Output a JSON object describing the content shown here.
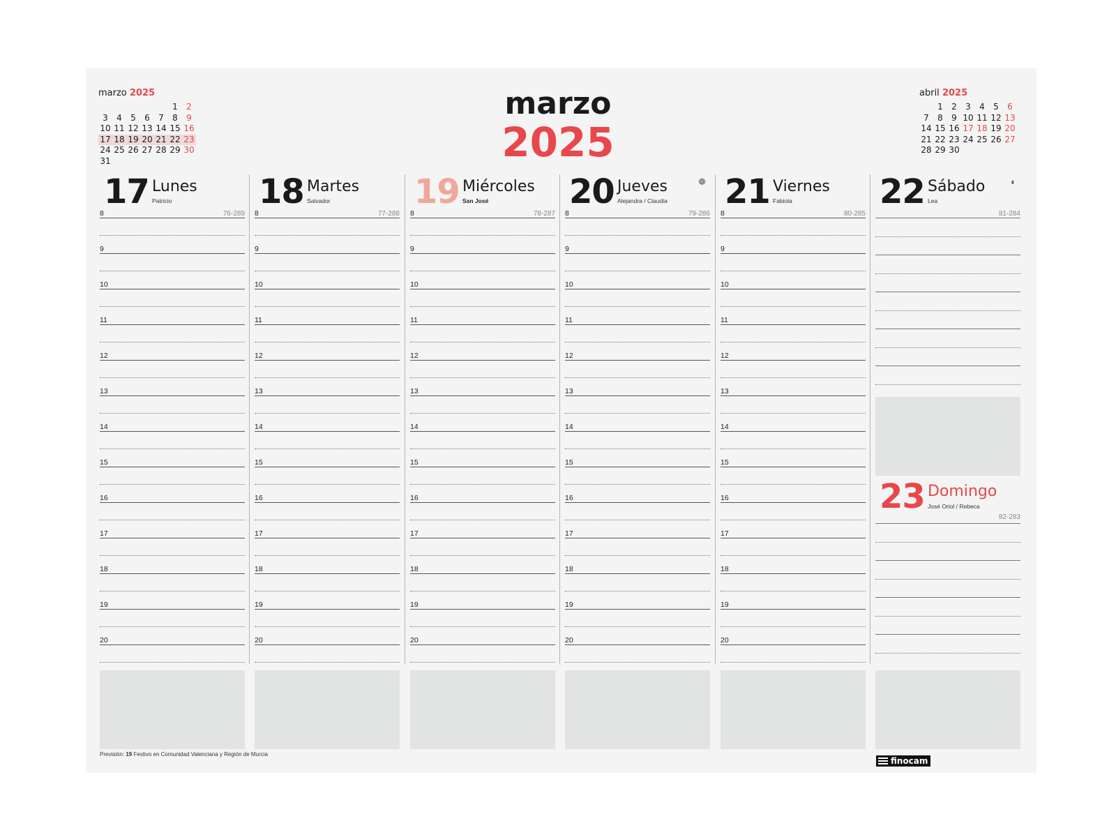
{
  "title": {
    "month": "marzo",
    "year": "2025"
  },
  "mini_left": {
    "month": "marzo",
    "year": "2025",
    "start_col": 5,
    "days": [
      "1",
      "2",
      "3",
      "4",
      "5",
      "6",
      "7",
      "8",
      "9",
      "10",
      "11",
      "12",
      "13",
      "14",
      "15",
      "16",
      "17",
      "18",
      "19",
      "20",
      "21",
      "22",
      "23",
      "24",
      "25",
      "26",
      "27",
      "28",
      "29",
      "30",
      "31"
    ],
    "red": [
      "2",
      "9",
      "16",
      "23",
      "30"
    ],
    "highlight": [
      "17",
      "18",
      "19",
      "20",
      "21",
      "22",
      "23"
    ]
  },
  "mini_right": {
    "month": "abril",
    "year": "2025",
    "start_col": 1,
    "days": [
      "1",
      "2",
      "3",
      "4",
      "5",
      "6",
      "7",
      "8",
      "9",
      "10",
      "11",
      "12",
      "13",
      "14",
      "15",
      "16",
      "17",
      "18",
      "19",
      "20",
      "21",
      "22",
      "23",
      "24",
      "25",
      "26",
      "27",
      "28",
      "29",
      "30"
    ],
    "red": [
      "6",
      "13",
      "17",
      "18",
      "20",
      "27"
    ],
    "highlight": []
  },
  "hours": [
    "8",
    "9",
    "10",
    "11",
    "12",
    "13",
    "14",
    "15",
    "16",
    "17",
    "18",
    "19",
    "20"
  ],
  "days": [
    {
      "num": "17",
      "name": "Lunes",
      "saint": "Patricio",
      "code": "76-289",
      "num_color": "#1a1a1a",
      "saint_bold": false,
      "icon": ""
    },
    {
      "num": "18",
      "name": "Martes",
      "saint": "Salvador",
      "code": "77-288",
      "num_color": "#1a1a1a",
      "saint_bold": false,
      "icon": ""
    },
    {
      "num": "19",
      "name": "Miércoles",
      "saint": "San José",
      "code": "78-287",
      "num_color": "#f0a79b",
      "saint_bold": true,
      "icon": ""
    },
    {
      "num": "20",
      "name": "Jueves",
      "saint": "Alejandra / Claudia",
      "code": "79-286",
      "num_color": "#1a1a1a",
      "saint_bold": false,
      "icon": "❁"
    },
    {
      "num": "21",
      "name": "Viernes",
      "saint": "Fabiola",
      "code": "80-285",
      "num_color": "#1a1a1a",
      "saint_bold": false,
      "icon": ""
    }
  ],
  "saturday": {
    "num": "22",
    "name": "Sábado",
    "saint": "Lea",
    "code": "81-284",
    "icon": "◐"
  },
  "sunday": {
    "num": "23",
    "name": "Domingo",
    "saint": "José Oriol / Rebeca",
    "code": "82-283"
  },
  "footnote": {
    "prefix": "Previsión: ",
    "day": "19",
    "text": " Festivo en Comunidad Valenciana y Región de Murcia"
  },
  "brand": "finocam",
  "colors": {
    "accent": "#e8474b",
    "holiday_num": "#f0a79b",
    "sheet": "#f3f4f3",
    "notes": "#e2e3e3"
  }
}
